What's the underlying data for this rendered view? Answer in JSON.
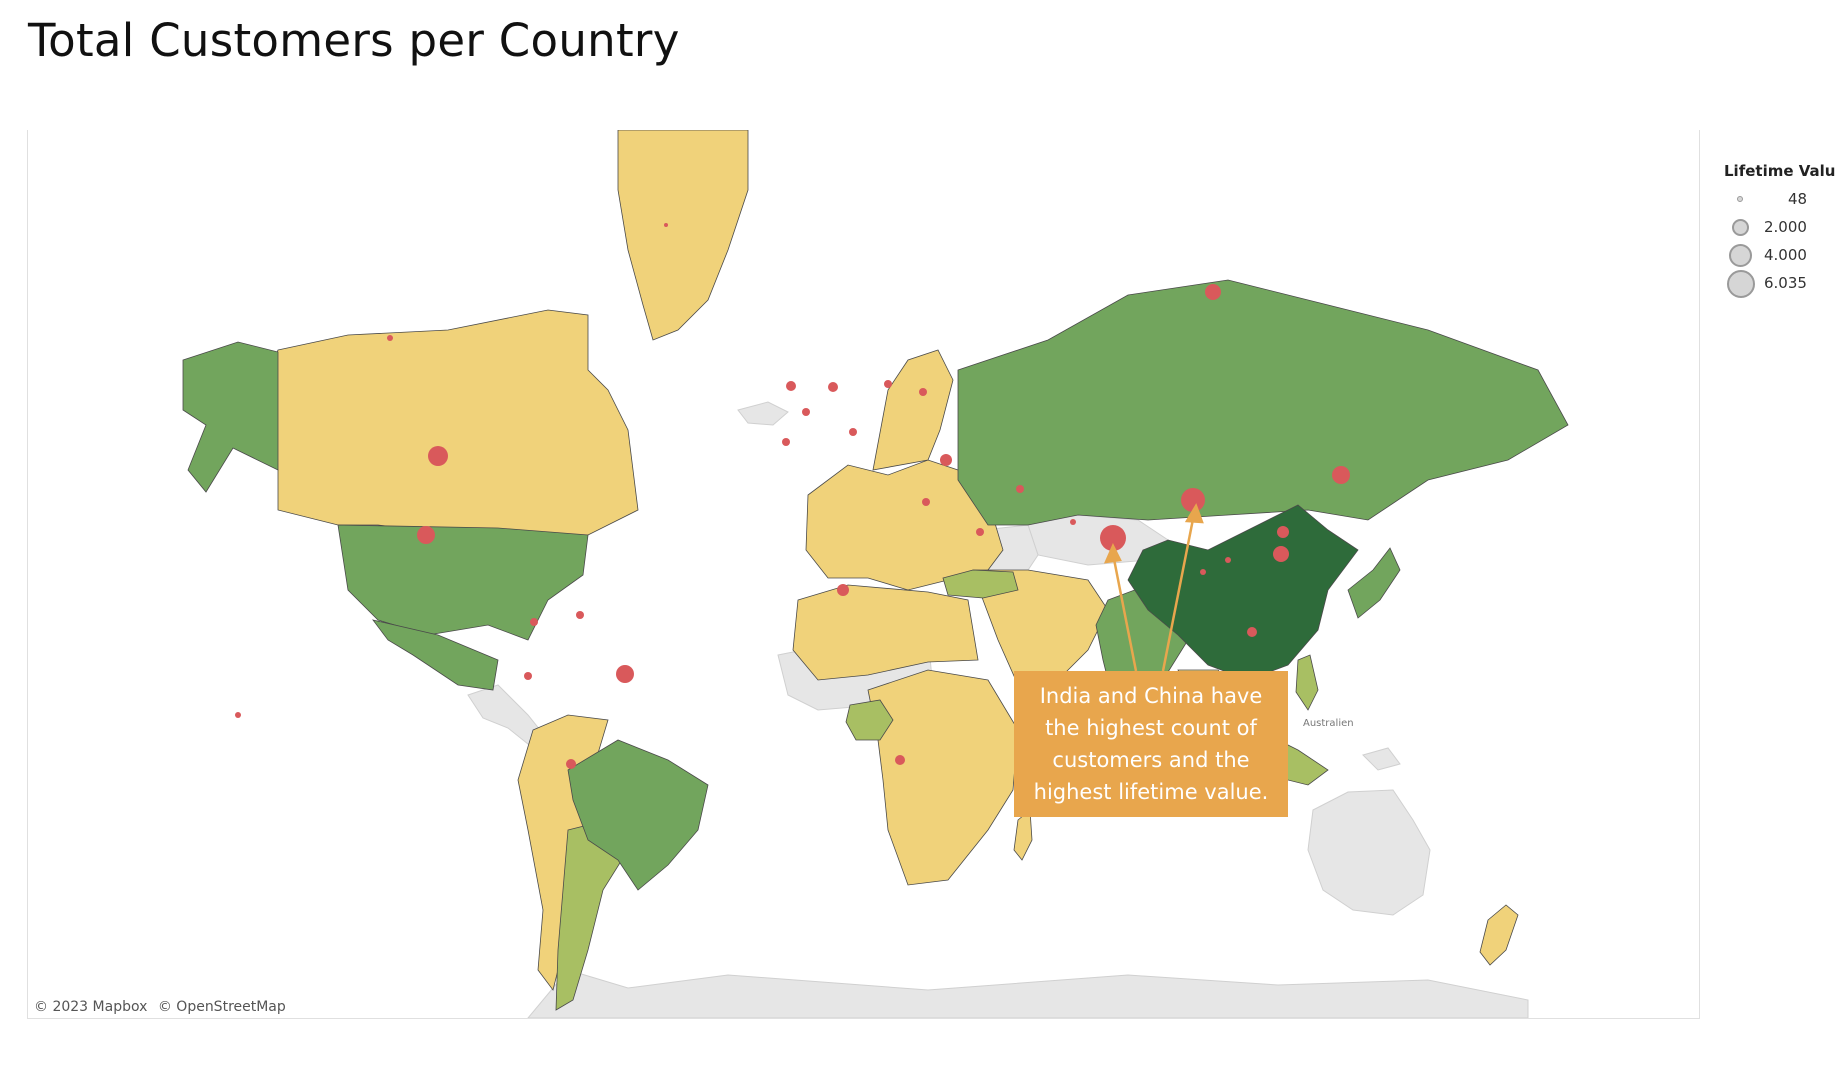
{
  "title": "Total Customers per Country",
  "annotation": "India and China have the highest count of customers and the highest lifetime value.",
  "attribution": {
    "mapbox": "© 2023 Mapbox",
    "osm": "© OpenStreetMap"
  },
  "ocean_label": "Australien",
  "legend": {
    "title": "Lifetime Value",
    "items": [
      {
        "label": "48",
        "value": 48
      },
      {
        "label": "2.000",
        "value": 2000
      },
      {
        "label": "4.000",
        "value": 4000
      },
      {
        "label": "6.035",
        "value": 6035
      }
    ]
  },
  "colors": {
    "tier_low": "#f0d27a",
    "tier_mid": "#a8bf63",
    "tier_high": "#72a55d",
    "tier_top": "#2e6b3a",
    "no_data": "#e6e6e6",
    "bubble": "#d9595b",
    "annotation": "#e8a64d"
  },
  "chart_data": {
    "type": "map",
    "title": "Total Customers per Country",
    "color_measure": "customer count tier",
    "size_measure": "Lifetime Value",
    "countries": [
      {
        "name": "China",
        "tier": "top",
        "lifetime_value": 4600
      },
      {
        "name": "India",
        "tier": "high",
        "lifetime_value": 6035
      },
      {
        "name": "United States",
        "tier": "high",
        "lifetime_value": 3900
      },
      {
        "name": "Russia",
        "tier": "high",
        "lifetime_value": 2200
      },
      {
        "name": "Brazil",
        "tier": "high",
        "lifetime_value": 2800
      },
      {
        "name": "Mexico",
        "tier": "high",
        "lifetime_value": 2700
      },
      {
        "name": "Japan",
        "tier": "high",
        "lifetime_value": 3400
      },
      {
        "name": "Turkey",
        "tier": "mid",
        "lifetime_value": 1600
      },
      {
        "name": "Nigeria",
        "tier": "mid",
        "lifetime_value": 1300
      },
      {
        "name": "Argentina",
        "tier": "mid",
        "lifetime_value": 1000
      },
      {
        "name": "Indonesia",
        "tier": "mid",
        "lifetime_value": 1200
      },
      {
        "name": "Philippines",
        "tier": "mid",
        "lifetime_value": 2200
      },
      {
        "name": "Taiwan",
        "tier": "low",
        "lifetime_value": 2000
      },
      {
        "name": "Canada",
        "tier": "low",
        "lifetime_value": 400
      },
      {
        "name": "Iran",
        "tier": "low",
        "lifetime_value": 900
      },
      {
        "name": "Germany",
        "tier": "low",
        "lifetime_value": 900
      },
      {
        "name": "United Kingdom",
        "tier": "low",
        "lifetime_value": 900
      },
      {
        "name": "Poland",
        "tier": "low",
        "lifetime_value": 700
      },
      {
        "name": "France",
        "tier": "low",
        "lifetime_value": 600
      },
      {
        "name": "Italy",
        "tier": "low",
        "lifetime_value": 600
      },
      {
        "name": "Spain",
        "tier": "low",
        "lifetime_value": 500
      },
      {
        "name": "South Africa",
        "tier": "low",
        "lifetime_value": 900
      },
      {
        "name": "Colombia",
        "tier": "low",
        "lifetime_value": 800
      },
      {
        "name": "Peru",
        "tier": "low",
        "lifetime_value": 700
      },
      {
        "name": "Egypt",
        "tier": "low",
        "lifetime_value": 600
      },
      {
        "name": "Saudi Arabia",
        "tier": "low",
        "lifetime_value": 700
      },
      {
        "name": "Venezuela",
        "tier": "low",
        "lifetime_value": 500
      },
      {
        "name": "Ukraine",
        "tier": "low",
        "lifetime_value": 500
      },
      {
        "name": "Thailand",
        "tier": "low",
        "lifetime_value": 400
      },
      {
        "name": "Vietnam",
        "tier": "low",
        "lifetime_value": 500
      },
      {
        "name": "Pakistan",
        "tier": "low",
        "lifetime_value": 400
      },
      {
        "name": "Greenland",
        "tier": "low",
        "lifetime_value": 48
      }
    ]
  }
}
